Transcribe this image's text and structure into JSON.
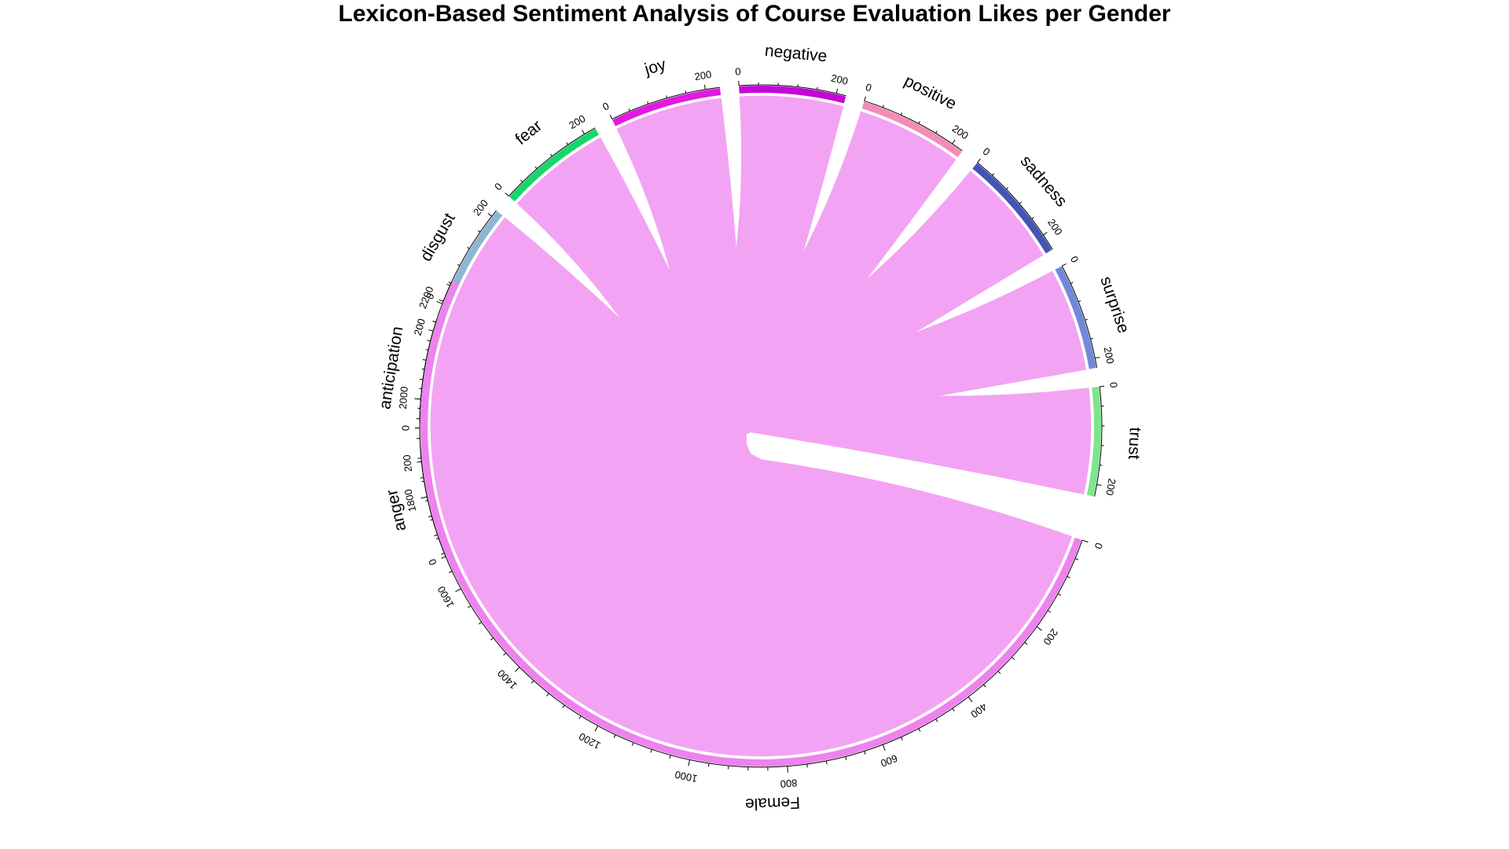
{
  "chart_data": {
    "type": "chord",
    "title": "Lexicon-Based Sentiment Analysis of Course Evaluation Likes per Gender",
    "target": {
      "name": "Female",
      "color": "#EE82EE"
    },
    "tick_step": 200,
    "link_color": "#F3A3F3",
    "sectors": [
      {
        "name": "anger",
        "value": 230,
        "color": "#EE6BD8"
      },
      {
        "name": "anticipation",
        "value": 225,
        "color": "#E800CF"
      },
      {
        "name": "disgust",
        "value": 215,
        "color": "#8FB5D5"
      },
      {
        "name": "fear",
        "value": 225,
        "color": "#17D66B"
      },
      {
        "name": "joy",
        "value": 230,
        "color": "#E11AE1"
      },
      {
        "name": "negative",
        "value": 220,
        "color": "#C406D8"
      },
      {
        "name": "positive",
        "value": 225,
        "color": "#F38CB6"
      },
      {
        "name": "sadness",
        "value": 235,
        "color": "#4454B5"
      },
      {
        "name": "surprise",
        "value": 220,
        "color": "#7289DA"
      },
      {
        "name": "trust",
        "value": 225,
        "color": "#7DE58E"
      }
    ]
  }
}
